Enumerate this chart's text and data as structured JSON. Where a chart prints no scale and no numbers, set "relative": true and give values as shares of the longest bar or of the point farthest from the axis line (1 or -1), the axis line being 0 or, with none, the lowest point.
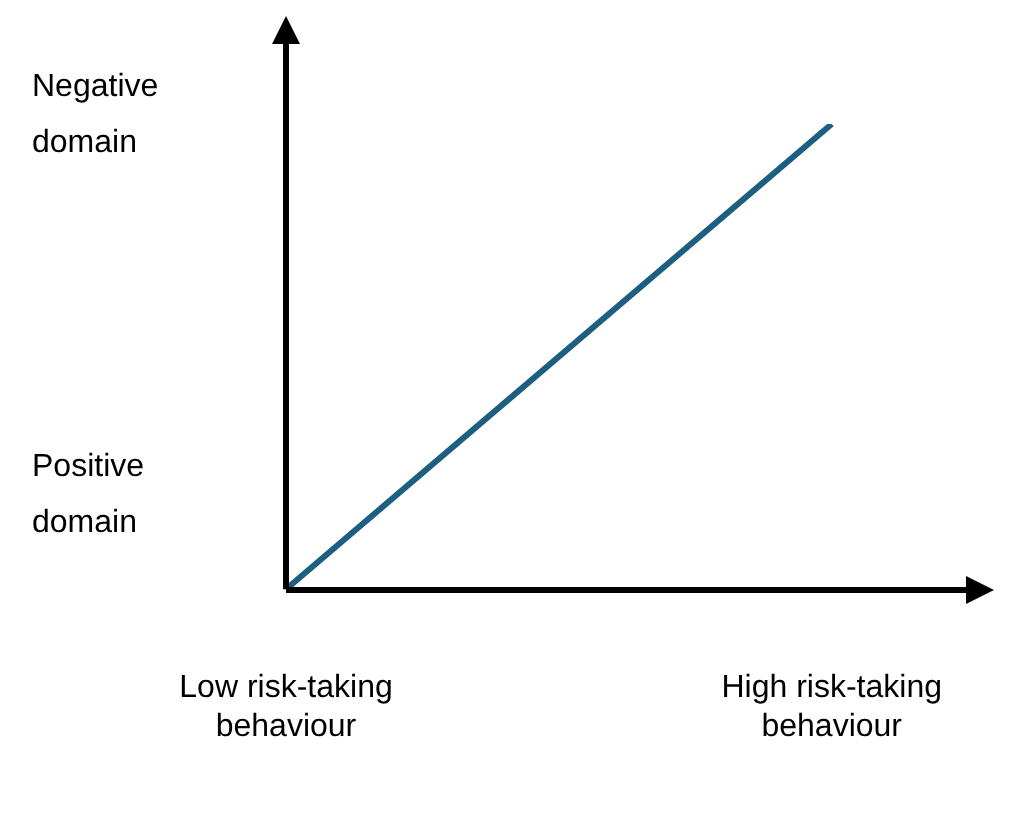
{
  "chart_data": {
    "type": "line",
    "relative": true,
    "categories": [
      "Low risk-taking behaviour",
      "High risk-taking behaviour"
    ],
    "series": [
      {
        "color": "#1d5f80",
        "values": [
          0,
          1
        ]
      }
    ],
    "annotations": [
      "Negative domain",
      "Positive domain"
    ],
    "marker": "none"
  }
}
